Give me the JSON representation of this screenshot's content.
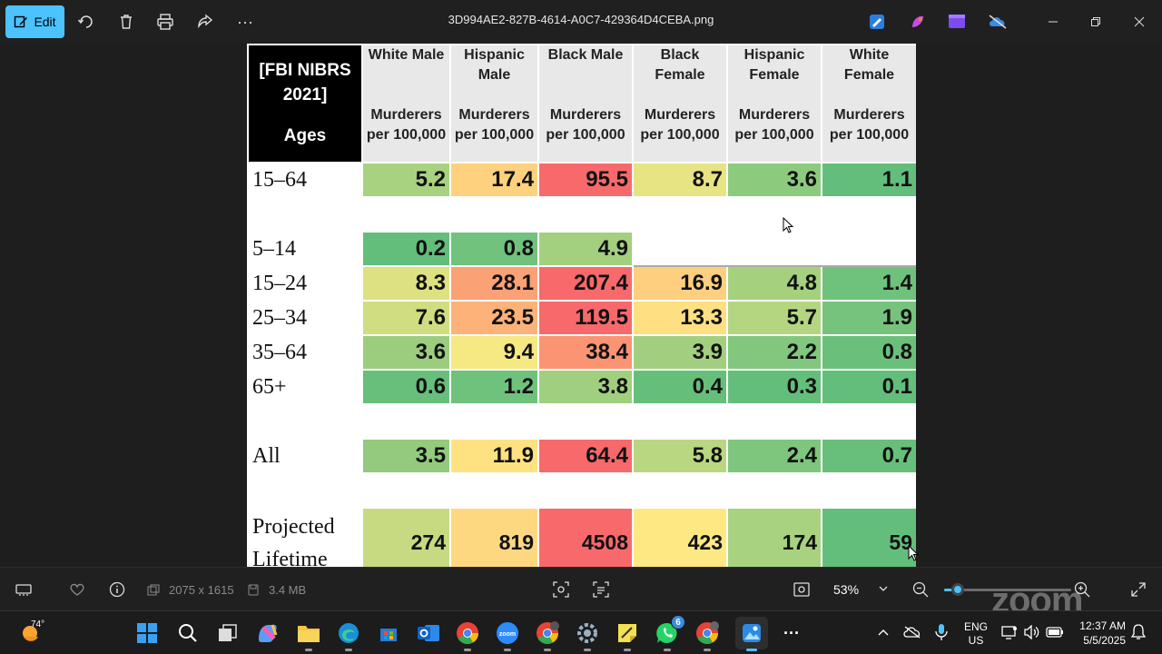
{
  "titlebar": {
    "edit_label": "Edit",
    "file_name": "3D994AE2-827B-4614-A0C7-429364D4CEBA.png"
  },
  "table": {
    "corner_title": "[FBI NIBRS 2021]",
    "corner_ages": "Ages",
    "columns": [
      {
        "group": "White Male",
        "unit": "Murderers per 100,000"
      },
      {
        "group": "Hispanic Male",
        "unit": "Murderers per 100,000"
      },
      {
        "group": "Black Male",
        "unit": "Murderers per 100,000"
      },
      {
        "group": "Black Female",
        "unit": "Murderers per 100,000"
      },
      {
        "group": "Hispanic Female",
        "unit": "Murderers per 100,000"
      },
      {
        "group": "White Female",
        "unit": "Murderers per 100,000"
      }
    ],
    "rows": [
      {
        "label": "15–64",
        "values": [
          "5.2",
          "17.4",
          "95.5",
          "8.7",
          "3.6",
          "1.1"
        ],
        "colors": [
          "#a8d27f",
          "#fdd17e",
          "#f8696b",
          "#e6e483",
          "#8ccb7e",
          "#63be7b"
        ]
      },
      {
        "label": "",
        "values": [
          "",
          "",
          "",
          "",
          "",
          ""
        ],
        "colors": [
          "#fff",
          "#fff",
          "#fff",
          "#fff",
          "#fff",
          "#fff"
        ]
      },
      {
        "label": "5–14",
        "values": [
          "0.2",
          "0.8",
          "4.9",
          "",
          "",
          ""
        ],
        "colors": [
          "#63be7b",
          "#70c27c",
          "#a3d07f",
          "#fff",
          "#fff",
          "#fff"
        ]
      },
      {
        "label": "15–24",
        "values": [
          "8.3",
          "28.1",
          "207.4",
          "16.9",
          "4.8",
          "1.4"
        ],
        "colors": [
          "#dde182",
          "#fba176",
          "#f8696b",
          "#fecf7e",
          "#a5d17f",
          "#6fc27c"
        ]
      },
      {
        "label": "25–34",
        "values": [
          "7.6",
          "23.5",
          "119.5",
          "13.3",
          "5.7",
          "1.9"
        ],
        "colors": [
          "#d0dd81",
          "#fcb279",
          "#f8696b",
          "#fee082",
          "#b4d680",
          "#75c37c"
        ]
      },
      {
        "label": "35–64",
        "values": [
          "3.6",
          "9.4",
          "38.4",
          "3.9",
          "2.2",
          "0.8"
        ],
        "colors": [
          "#9ccd7e",
          "#f6e883",
          "#fa9473",
          "#a1cf7f",
          "#82c77d",
          "#6ac07b"
        ]
      },
      {
        "label": "65+",
        "values": [
          "0.6",
          "1.2",
          "3.8",
          "0.4",
          "0.3",
          "0.1"
        ],
        "colors": [
          "#67bf7b",
          "#6fc27c",
          "#a0cf7f",
          "#65bf7b",
          "#64be7b",
          "#63be7b"
        ]
      },
      {
        "label": "",
        "values": [
          "",
          "",
          "",
          "",
          "",
          ""
        ],
        "colors": [
          "#fff",
          "#fff",
          "#fff",
          "#fff",
          "#fff",
          "#fff"
        ]
      },
      {
        "label": "All",
        "values": [
          "3.5",
          "11.9",
          "64.4",
          "5.8",
          "2.4",
          "0.7"
        ],
        "colors": [
          "#93ca7e",
          "#fee282",
          "#f8696b",
          "#b9d780",
          "#7ec67d",
          "#67bf7b"
        ]
      },
      {
        "label": "",
        "values": [
          "",
          "",
          "",
          "",
          "",
          ""
        ],
        "colors": [
          "#fff",
          "#fff",
          "#fff",
          "#fff",
          "#fff",
          "#fff"
        ]
      },
      {
        "label": "Projected Lifetime",
        "values": [
          "274",
          "819",
          "4508",
          "423",
          "174",
          "59"
        ],
        "colors": [
          "#c7da81",
          "#fed880",
          "#f8696b",
          "#fde883",
          "#a8d27f",
          "#63be7b"
        ]
      }
    ]
  },
  "bottombar": {
    "dimensions": "2075 x 1615",
    "file_size": "3.4 MB",
    "zoom_level": "53%",
    "zoom_slider_value": 0.11,
    "watermark": "zoom"
  },
  "taskbar": {
    "weather_temp": "74°",
    "apps": [
      "start",
      "search",
      "task-view",
      "copilot",
      "file-explorer",
      "edge",
      "store",
      "outlook",
      "chrome",
      "zoom-app",
      "chrome-profile",
      "settings",
      "sticky-notes",
      "whatsapp",
      "chrome-profile-2",
      "photos",
      "more"
    ],
    "zoom_app_label": "zoom",
    "whatsapp_badge": "6",
    "lang_top": "ENG",
    "lang_bottom": "US",
    "time": "12:37 AM",
    "date": "5/5/2025"
  },
  "colors": {
    "accent": "#4cc2ff",
    "heat_green": "#63be7b",
    "heat_yellow": "#ffeb84",
    "heat_red": "#f8696b"
  }
}
